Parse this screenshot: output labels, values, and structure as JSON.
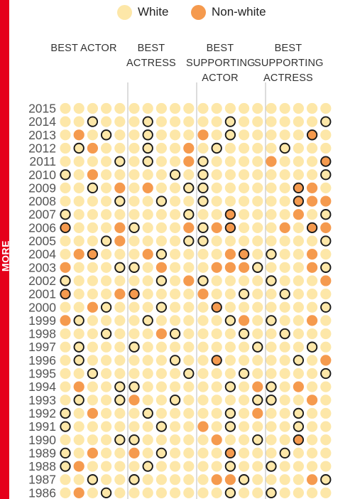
{
  "more_label": "MORE",
  "legend": [
    {
      "label": "White",
      "color": "#fde7a8"
    },
    {
      "label": "Non-white",
      "color": "#f59a4e"
    }
  ],
  "colors": {
    "white_dot": "#fde7a8",
    "nonwhite_dot": "#f59a4e",
    "winner_outline": "#1a1a1a",
    "divider": "#b8b8b8",
    "tab": "#e5001a"
  },
  "chart_data": {
    "type": "dot-matrix",
    "categories": [
      {
        "lines": [
          "BEST ACTOR"
        ]
      },
      {
        "lines": [
          "BEST",
          "ACTRESS"
        ]
      },
      {
        "lines": [
          "BEST",
          "SUPPORTING",
          "ACTOR"
        ]
      },
      {
        "lines": [
          "BEST",
          "SUPPORTING",
          "ACTRESS"
        ]
      }
    ],
    "nominees_per_category": 5,
    "key": {
      "0": "white nominee",
      "1": "white winner",
      "2": "non-white nominee",
      "3": "non-white winner"
    },
    "rows": [
      {
        "year": "2015",
        "cells": [
          0,
          0,
          0,
          0,
          0,
          0,
          0,
          0,
          0,
          0,
          0,
          0,
          0,
          0,
          0,
          0,
          0,
          0,
          0,
          0
        ]
      },
      {
        "year": "2014",
        "cells": [
          0,
          0,
          1,
          0,
          0,
          0,
          1,
          0,
          0,
          0,
          0,
          0,
          1,
          0,
          0,
          0,
          0,
          0,
          0,
          1
        ]
      },
      {
        "year": "2013",
        "cells": [
          0,
          2,
          0,
          1,
          0,
          0,
          1,
          0,
          0,
          0,
          2,
          0,
          1,
          0,
          0,
          0,
          0,
          0,
          3,
          0
        ]
      },
      {
        "year": "2012",
        "cells": [
          0,
          1,
          2,
          0,
          0,
          0,
          1,
          0,
          0,
          2,
          0,
          1,
          0,
          0,
          0,
          0,
          1,
          0,
          0,
          0
        ]
      },
      {
        "year": "2011",
        "cells": [
          0,
          0,
          0,
          0,
          1,
          0,
          1,
          0,
          0,
          2,
          1,
          0,
          0,
          0,
          0,
          2,
          0,
          0,
          0,
          3
        ]
      },
      {
        "year": "2010",
        "cells": [
          1,
          0,
          2,
          0,
          0,
          0,
          0,
          0,
          1,
          0,
          1,
          0,
          0,
          0,
          0,
          0,
          0,
          0,
          0,
          1
        ]
      },
      {
        "year": "2009",
        "cells": [
          0,
          0,
          1,
          0,
          2,
          0,
          2,
          0,
          0,
          1,
          1,
          0,
          0,
          0,
          0,
          0,
          0,
          3,
          2,
          0
        ]
      },
      {
        "year": "2008",
        "cells": [
          0,
          0,
          0,
          0,
          1,
          0,
          0,
          1,
          0,
          0,
          1,
          0,
          0,
          0,
          0,
          0,
          0,
          3,
          2,
          2
        ]
      },
      {
        "year": "2007",
        "cells": [
          1,
          0,
          0,
          0,
          0,
          0,
          0,
          0,
          0,
          1,
          0,
          0,
          3,
          0,
          0,
          0,
          0,
          2,
          0,
          1
        ]
      },
      {
        "year": "2006",
        "cells": [
          3,
          0,
          0,
          0,
          2,
          1,
          0,
          0,
          0,
          2,
          1,
          2,
          3,
          0,
          0,
          0,
          2,
          0,
          3,
          2
        ]
      },
      {
        "year": "2005",
        "cells": [
          0,
          0,
          0,
          1,
          2,
          0,
          0,
          0,
          0,
          1,
          1,
          0,
          0,
          0,
          0,
          0,
          0,
          0,
          0,
          1
        ]
      },
      {
        "year": "2004",
        "cells": [
          0,
          2,
          3,
          0,
          0,
          0,
          2,
          1,
          0,
          0,
          0,
          0,
          2,
          3,
          0,
          1,
          0,
          0,
          2,
          0
        ]
      },
      {
        "year": "2003",
        "cells": [
          2,
          0,
          0,
          0,
          1,
          1,
          0,
          2,
          0,
          0,
          0,
          2,
          2,
          2,
          1,
          0,
          0,
          0,
          2,
          1
        ]
      },
      {
        "year": "2002",
        "cells": [
          1,
          0,
          0,
          0,
          0,
          0,
          0,
          1,
          0,
          2,
          1,
          0,
          0,
          0,
          0,
          1,
          0,
          0,
          0,
          2
        ]
      },
      {
        "year": "2001",
        "cells": [
          3,
          0,
          0,
          0,
          2,
          3,
          0,
          0,
          0,
          0,
          2,
          0,
          0,
          1,
          0,
          0,
          1,
          0,
          0,
          0
        ]
      },
      {
        "year": "2000",
        "cells": [
          0,
          0,
          2,
          1,
          0,
          0,
          0,
          1,
          0,
          0,
          0,
          3,
          0,
          0,
          0,
          0,
          0,
          0,
          0,
          1
        ]
      },
      {
        "year": "1999",
        "cells": [
          2,
          1,
          0,
          0,
          0,
          0,
          1,
          0,
          0,
          0,
          0,
          0,
          1,
          2,
          0,
          1,
          0,
          0,
          2,
          0
        ]
      },
      {
        "year": "1998",
        "cells": [
          0,
          0,
          0,
          1,
          0,
          0,
          0,
          2,
          1,
          0,
          0,
          0,
          0,
          1,
          0,
          0,
          1,
          0,
          0,
          0
        ]
      },
      {
        "year": "1997",
        "cells": [
          0,
          1,
          0,
          0,
          0,
          1,
          0,
          0,
          0,
          0,
          0,
          0,
          0,
          0,
          1,
          0,
          0,
          0,
          1,
          0
        ]
      },
      {
        "year": "1996",
        "cells": [
          0,
          1,
          0,
          0,
          0,
          0,
          0,
          0,
          1,
          0,
          0,
          3,
          0,
          0,
          0,
          0,
          0,
          1,
          0,
          2
        ]
      },
      {
        "year": "1995",
        "cells": [
          0,
          0,
          1,
          0,
          0,
          0,
          0,
          0,
          0,
          1,
          0,
          0,
          0,
          1,
          0,
          0,
          0,
          0,
          0,
          1
        ]
      },
      {
        "year": "1994",
        "cells": [
          0,
          2,
          0,
          0,
          1,
          1,
          0,
          0,
          0,
          0,
          0,
          0,
          1,
          0,
          2,
          1,
          0,
          2,
          0,
          0
        ]
      },
      {
        "year": "1993",
        "cells": [
          0,
          1,
          0,
          0,
          1,
          2,
          0,
          0,
          1,
          0,
          0,
          0,
          0,
          0,
          1,
          1,
          0,
          0,
          2,
          0
        ]
      },
      {
        "year": "1992",
        "cells": [
          1,
          0,
          2,
          0,
          0,
          0,
          1,
          0,
          0,
          0,
          0,
          0,
          1,
          0,
          2,
          0,
          0,
          1,
          0,
          0
        ]
      },
      {
        "year": "1991",
        "cells": [
          1,
          0,
          0,
          0,
          0,
          0,
          0,
          1,
          0,
          0,
          2,
          0,
          1,
          0,
          0,
          0,
          0,
          1,
          0,
          0
        ]
      },
      {
        "year": "1990",
        "cells": [
          0,
          0,
          0,
          0,
          1,
          1,
          0,
          0,
          0,
          0,
          0,
          2,
          0,
          0,
          1,
          0,
          0,
          3,
          0,
          0
        ]
      },
      {
        "year": "1989",
        "cells": [
          1,
          0,
          2,
          0,
          0,
          2,
          0,
          1,
          0,
          0,
          0,
          0,
          3,
          0,
          0,
          0,
          1,
          0,
          0,
          0
        ]
      },
      {
        "year": "1988",
        "cells": [
          1,
          2,
          0,
          0,
          0,
          0,
          1,
          0,
          0,
          0,
          0,
          0,
          1,
          0,
          0,
          1,
          0,
          0,
          0,
          0
        ]
      },
      {
        "year": "1987",
        "cells": [
          0,
          0,
          1,
          0,
          0,
          1,
          0,
          0,
          0,
          0,
          0,
          2,
          2,
          1,
          0,
          0,
          0,
          0,
          2,
          1
        ]
      },
      {
        "year": "1986",
        "cells": [
          0,
          2,
          0,
          1,
          0,
          0,
          0,
          0,
          0,
          0,
          0,
          0,
          1,
          0,
          0,
          1,
          0,
          0,
          0,
          0
        ]
      }
    ]
  }
}
